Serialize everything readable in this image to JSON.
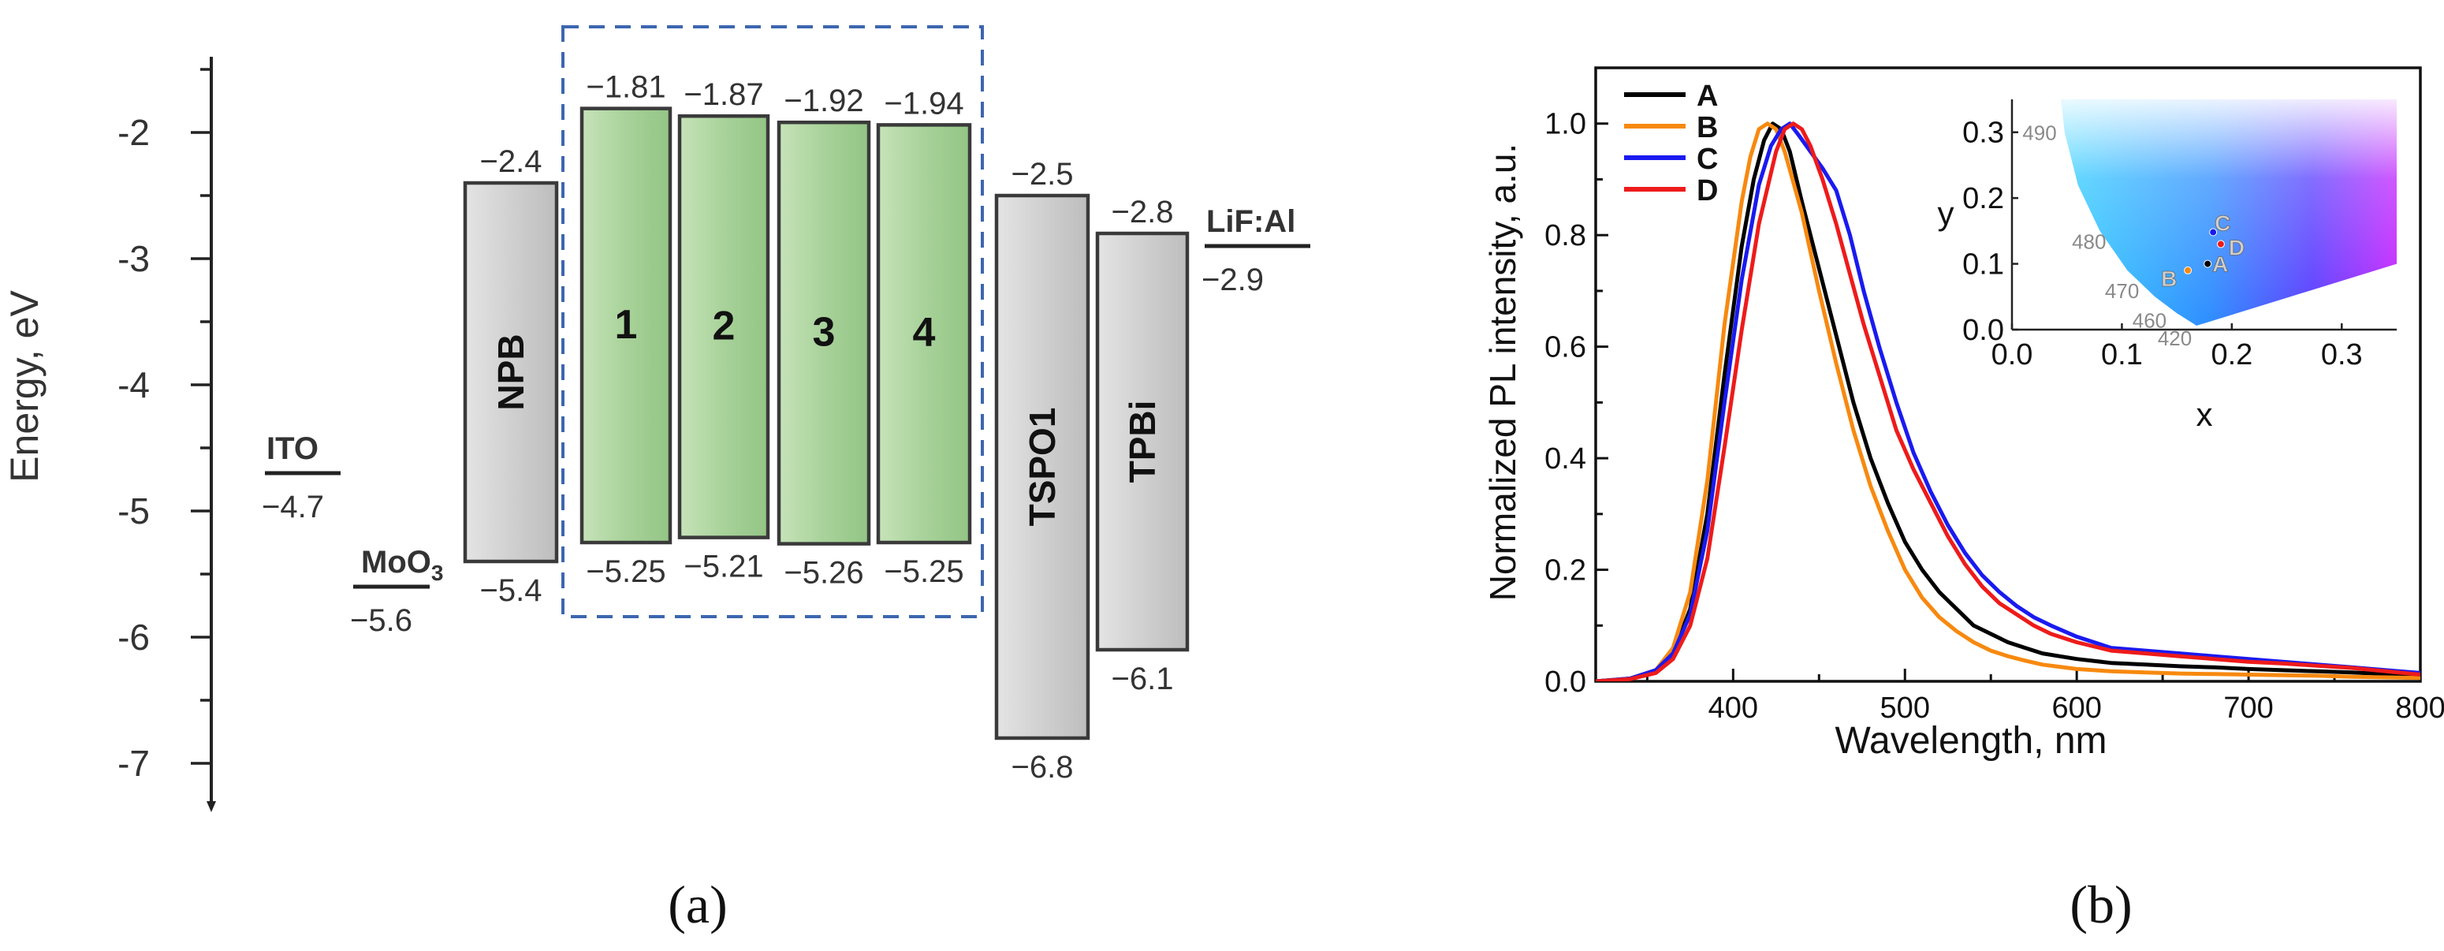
{
  "colors": {
    "axis": "#222222",
    "grey_fill": "#d2d2d2",
    "grey_stroke": "#3a3a3a",
    "green_fill": "#a8d29a",
    "green_stroke": "#3a3a3a",
    "dash_box": "#3c66b0",
    "A": "#000000",
    "B": "#f7890f",
    "C": "#1a1af0",
    "D": "#ee1b1b"
  },
  "panel_labels": {
    "a": "(a)",
    "b": "(b)"
  },
  "chart_data": [
    {
      "type": "diagram",
      "name": "energy-level diagram",
      "ylabel": "Energy, eV",
      "ylim": [
        -7.3,
        -1.4
      ],
      "ticks": [
        -2,
        -3,
        -4,
        -5,
        -6,
        -7
      ],
      "tick_labels": [
        "-2",
        "-3",
        "-4",
        "-5",
        "-6",
        "-7"
      ],
      "electrodes": [
        {
          "name": "ITO",
          "value": -4.7,
          "value_label": "−4.7"
        },
        {
          "name": "MoO3",
          "name_main": "MoO",
          "name_sub": "3",
          "value": -5.6,
          "value_label": "−5.6"
        },
        {
          "name": "LiF:Al",
          "value": -2.9,
          "value_label": "−2.9"
        }
      ],
      "layers": [
        {
          "name": "NPB",
          "label": "NPB",
          "fill": "grey",
          "rotated": true,
          "lumo": -2.4,
          "homo": -5.4,
          "lumo_label": "−2.4",
          "homo_label": "−5.4"
        },
        {
          "name": "1",
          "label": "1",
          "fill": "green",
          "rotated": false,
          "lumo": -1.81,
          "homo": -5.25,
          "lumo_label": "−1.81",
          "homo_label": "−5.25"
        },
        {
          "name": "2",
          "label": "2",
          "fill": "green",
          "rotated": false,
          "lumo": -1.87,
          "homo": -5.21,
          "lumo_label": "−1.87",
          "homo_label": "−5.21"
        },
        {
          "name": "3",
          "label": "3",
          "fill": "green",
          "rotated": false,
          "lumo": -1.92,
          "homo": -5.26,
          "lumo_label": "−1.92",
          "homo_label": "−5.26"
        },
        {
          "name": "4",
          "label": "4",
          "fill": "green",
          "rotated": false,
          "lumo": -1.94,
          "homo": -5.25,
          "lumo_label": "−1.94",
          "homo_label": "−5.25"
        },
        {
          "name": "TSPO1",
          "label": "TSPO1",
          "fill": "grey",
          "rotated": true,
          "lumo": -2.5,
          "homo": -6.8,
          "lumo_label": "−2.5",
          "homo_label": "−6.8"
        },
        {
          "name": "TPBi",
          "label": "TPBi",
          "fill": "grey",
          "rotated": true,
          "lumo": -2.8,
          "homo": -6.1,
          "lumo_label": "−2.8",
          "homo_label": "−6.1"
        }
      ]
    },
    {
      "type": "line",
      "name": "PL spectra",
      "xlabel": "Wavelength, nm",
      "ylabel": "Normalized PL intensity, a.u.",
      "xlim": [
        320,
        800
      ],
      "ylim": [
        0,
        1.1
      ],
      "xticks": [
        400,
        500,
        600,
        700,
        800
      ],
      "xtick_labels": [
        "400",
        "500",
        "600",
        "700",
        "800"
      ],
      "yticks": [
        0,
        0.2,
        0.4,
        0.6,
        0.8,
        1.0
      ],
      "ytick_labels": [
        "0.0",
        "0.2",
        "0.4",
        "0.6",
        "0.8",
        "1.0"
      ],
      "legend": "top-left",
      "series": [
        {
          "name": "A",
          "x": [
            320,
            340,
            355,
            365,
            375,
            385,
            395,
            405,
            412,
            418,
            423,
            428,
            433,
            440,
            450,
            460,
            470,
            480,
            490,
            500,
            510,
            520,
            530,
            540,
            550,
            560,
            570,
            580,
            590,
            600,
            620,
            640,
            660,
            680,
            700,
            720,
            740,
            760,
            780,
            800
          ],
          "y": [
            0.0,
            0.005,
            0.02,
            0.05,
            0.13,
            0.3,
            0.55,
            0.78,
            0.9,
            0.97,
            1.0,
            0.99,
            0.95,
            0.86,
            0.74,
            0.62,
            0.5,
            0.4,
            0.32,
            0.25,
            0.2,
            0.16,
            0.13,
            0.1,
            0.085,
            0.07,
            0.06,
            0.05,
            0.045,
            0.04,
            0.033,
            0.03,
            0.027,
            0.025,
            0.022,
            0.02,
            0.018,
            0.016,
            0.013,
            0.01
          ]
        },
        {
          "name": "B",
          "x": [
            320,
            340,
            355,
            365,
            375,
            385,
            395,
            405,
            410,
            415,
            420,
            425,
            430,
            440,
            450,
            460,
            470,
            480,
            490,
            500,
            510,
            520,
            530,
            540,
            550,
            560,
            570,
            580,
            590,
            600,
            620,
            640,
            660,
            680,
            700,
            720,
            740,
            760,
            780,
            800
          ],
          "y": [
            0.0,
            0.005,
            0.02,
            0.06,
            0.16,
            0.36,
            0.64,
            0.86,
            0.94,
            0.99,
            1.0,
            0.99,
            0.95,
            0.84,
            0.7,
            0.57,
            0.45,
            0.35,
            0.27,
            0.2,
            0.15,
            0.115,
            0.09,
            0.07,
            0.055,
            0.045,
            0.037,
            0.03,
            0.026,
            0.022,
            0.018,
            0.016,
            0.014,
            0.013,
            0.012,
            0.011,
            0.01,
            0.008,
            0.007,
            0.006
          ]
        },
        {
          "name": "C",
          "x": [
            320,
            340,
            355,
            365,
            375,
            385,
            395,
            405,
            415,
            422,
            428,
            433,
            438,
            445,
            452,
            460,
            468,
            476,
            485,
            495,
            505,
            515,
            525,
            535,
            545,
            555,
            565,
            575,
            585,
            600,
            620,
            640,
            660,
            680,
            700,
            720,
            740,
            760,
            780,
            800
          ],
          "y": [
            0.0,
            0.005,
            0.02,
            0.05,
            0.12,
            0.27,
            0.5,
            0.72,
            0.89,
            0.96,
            0.99,
            1.0,
            0.98,
            0.95,
            0.92,
            0.88,
            0.8,
            0.7,
            0.6,
            0.5,
            0.41,
            0.34,
            0.28,
            0.23,
            0.19,
            0.16,
            0.135,
            0.115,
            0.1,
            0.08,
            0.06,
            0.055,
            0.05,
            0.045,
            0.04,
            0.035,
            0.03,
            0.025,
            0.02,
            0.015
          ]
        },
        {
          "name": "D",
          "x": [
            320,
            340,
            355,
            365,
            375,
            385,
            395,
            405,
            415,
            425,
            430,
            435,
            440,
            445,
            452,
            460,
            468,
            476,
            485,
            495,
            505,
            515,
            525,
            535,
            545,
            555,
            565,
            575,
            585,
            600,
            620,
            640,
            660,
            680,
            700,
            720,
            740,
            760,
            780,
            800
          ],
          "y": [
            0.0,
            0.004,
            0.015,
            0.04,
            0.1,
            0.22,
            0.42,
            0.63,
            0.82,
            0.95,
            0.99,
            1.0,
            0.99,
            0.96,
            0.9,
            0.82,
            0.73,
            0.64,
            0.55,
            0.45,
            0.38,
            0.32,
            0.26,
            0.21,
            0.17,
            0.14,
            0.12,
            0.1,
            0.085,
            0.07,
            0.055,
            0.05,
            0.045,
            0.04,
            0.035,
            0.032,
            0.028,
            0.024,
            0.018,
            0.012
          ]
        }
      ]
    },
    {
      "type": "scatter",
      "name": "CIE chromaticity inset",
      "xlabel": "x",
      "ylabel": "y",
      "xlim": [
        0.0,
        0.35
      ],
      "ylim": [
        0.0,
        0.35
      ],
      "xticks": [
        0.0,
        0.1,
        0.2,
        0.3
      ],
      "xtick_labels": [
        "0.0",
        "0.1",
        "0.2",
        "0.3"
      ],
      "yticks": [
        0.0,
        0.1,
        0.2,
        0.3
      ],
      "ytick_labels": [
        "0.0",
        "0.1",
        "0.2",
        "0.3"
      ],
      "wavelength_labels": [
        {
          "text": "490",
          "x": 0.045,
          "y": 0.3
        },
        {
          "text": "480",
          "x": 0.09,
          "y": 0.135
        },
        {
          "text": "470",
          "x": 0.12,
          "y": 0.06
        },
        {
          "text": "460",
          "x": 0.145,
          "y": 0.015
        },
        {
          "text": "420",
          "x": 0.168,
          "y": -0.012
        }
      ],
      "points": [
        {
          "name": "A",
          "x": 0.178,
          "y": 0.1
        },
        {
          "name": "B",
          "x": 0.16,
          "y": 0.09
        },
        {
          "name": "C",
          "x": 0.183,
          "y": 0.148
        },
        {
          "name": "D",
          "x": 0.19,
          "y": 0.13
        }
      ]
    }
  ]
}
